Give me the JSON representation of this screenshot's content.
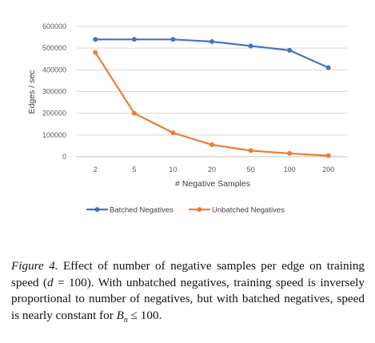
{
  "chart_data": {
    "type": "line",
    "categories": [
      "2",
      "5",
      "10",
      "20",
      "50",
      "100",
      "200"
    ],
    "series": [
      {
        "name": "Batched Negatives",
        "color": "#4472C4",
        "values": [
          540000,
          540000,
          540000,
          530000,
          510000,
          490000,
          410000
        ]
      },
      {
        "name": "Unbatched Negatives",
        "color": "#ED7D31",
        "values": [
          480000,
          200000,
          110000,
          55000,
          28000,
          15000,
          5000
        ]
      }
    ],
    "yticks": [
      "0",
      "100000",
      "200000",
      "300000",
      "400000",
      "500000",
      "600000"
    ],
    "ylim": [
      0,
      600000
    ],
    "xlabel": "# Negative Samples",
    "ylabel": "Edges / sec",
    "grid": "horizontal",
    "legend": "bottom"
  },
  "caption": {
    "label": "Figure 4.",
    "line1_rest": " Effect of number of negative samples per edge on training",
    "line2_a": "speed (",
    "d_var": "d",
    "line2_b": " = 100).  With unbatched negatives, training speed is",
    "line3": "inversely proportional to number of negatives, but with batched",
    "line4_a": "negatives, speed is nearly constant for ",
    "bn_var": "B",
    "bn_sub": "n",
    "line4_b": " ≤ 100."
  }
}
